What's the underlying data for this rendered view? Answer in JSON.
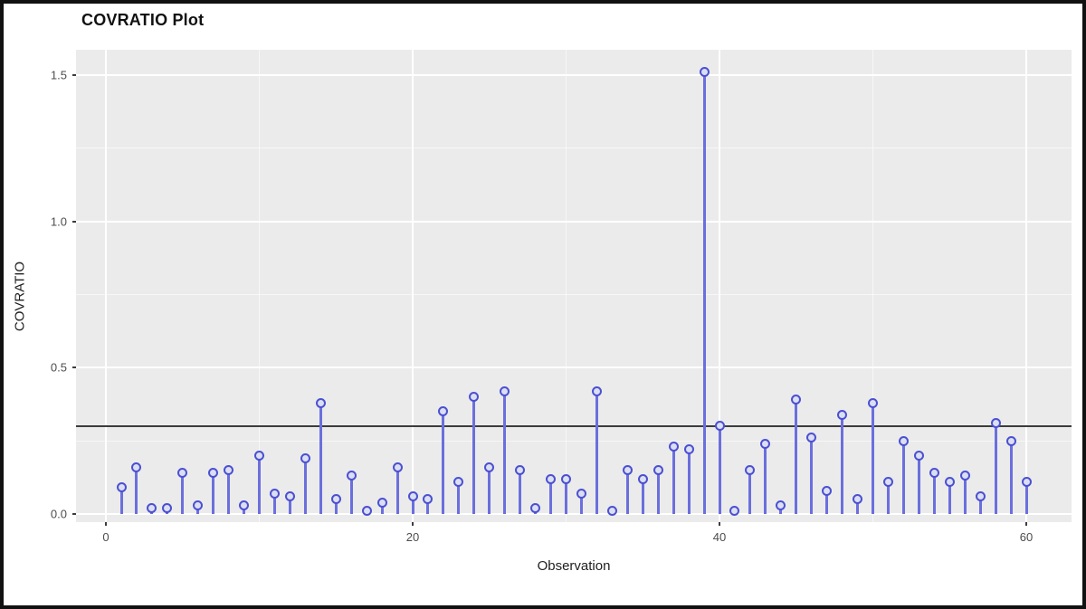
{
  "chart_data": {
    "type": "scatter",
    "style": "lollipop-stem",
    "title": "COVRATIO Plot",
    "xlabel": "Observation",
    "ylabel": "COVRATIO",
    "x": [
      1,
      2,
      3,
      4,
      5,
      6,
      7,
      8,
      9,
      10,
      11,
      12,
      13,
      14,
      15,
      16,
      17,
      18,
      19,
      20,
      21,
      22,
      23,
      24,
      25,
      26,
      27,
      28,
      29,
      30,
      31,
      32,
      33,
      34,
      35,
      36,
      37,
      38,
      39,
      40,
      41,
      42,
      43,
      44,
      45,
      46,
      47,
      48,
      49,
      50,
      51,
      52,
      53,
      54,
      55,
      56,
      57,
      58,
      59,
      60
    ],
    "values": [
      0.09,
      0.16,
      0.02,
      0.02,
      0.14,
      0.03,
      0.14,
      0.15,
      0.03,
      0.2,
      0.07,
      0.06,
      0.19,
      0.38,
      0.05,
      0.13,
      0.01,
      0.04,
      0.16,
      0.06,
      0.05,
      0.35,
      0.11,
      0.4,
      0.16,
      0.42,
      0.15,
      0.02,
      0.12,
      0.12,
      0.07,
      0.42,
      0.01,
      0.15,
      0.12,
      0.15,
      0.23,
      0.22,
      1.51,
      0.3,
      0.01,
      0.15,
      0.24,
      0.03,
      0.39,
      0.26,
      0.08,
      0.34,
      0.05,
      0.38,
      0.11,
      0.25,
      0.2,
      0.14,
      0.11,
      0.13,
      0.06,
      0.31,
      0.25,
      0.11
    ],
    "reference_line_y": 0.3,
    "xlim": [
      -1.95,
      62.95
    ],
    "ylim": [
      -0.028,
      1.587
    ],
    "x_major_breaks": [
      0,
      20,
      40,
      60
    ],
    "x_major_labels": [
      "0",
      "20",
      "40",
      "60"
    ],
    "x_minor_breaks": [
      10,
      30,
      50
    ],
    "y_major_breaks": [
      0.0,
      0.5,
      1.0,
      1.5
    ],
    "y_major_labels": [
      "0.0",
      "0.5",
      "1.0",
      "1.5"
    ],
    "y_minor_breaks": [
      0.25,
      0.75,
      1.25
    ],
    "grid": "on",
    "legend": "none",
    "baseline": 0.0,
    "colors": {
      "panel_background": "#ebebeb",
      "gridline": "#ffffff",
      "stem": "#6b6fdd",
      "marker_ring": "#4a50d2",
      "marker_fill": "#dcdef2",
      "reference_line": "#3c3c3c",
      "tick_label": "#4d4d4d",
      "axis_title": "#1f1f1f",
      "title": "#111111",
      "frame": "#111111"
    }
  }
}
